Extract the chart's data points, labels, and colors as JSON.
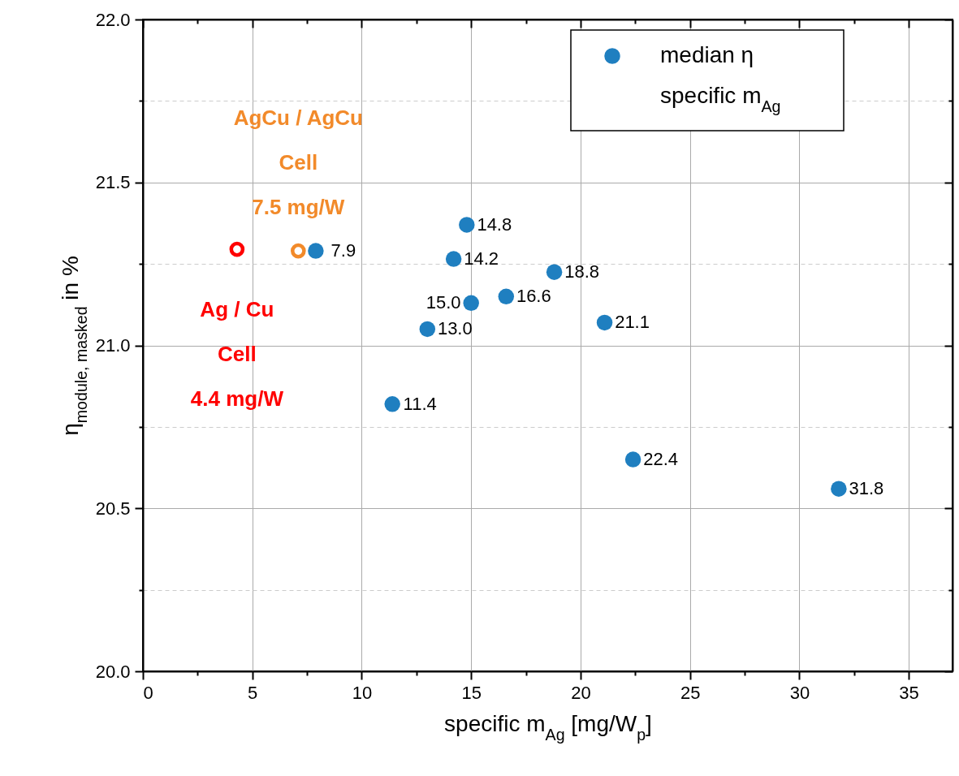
{
  "chart_data": {
    "type": "scatter",
    "xlabel": "specific m$_{Ag}$ [mg/W$_{p}$]",
    "ylabel": "η$_{module, masked}$ in %",
    "xlim": [
      0,
      37
    ],
    "ylim": [
      20,
      22
    ],
    "xticks": [
      0,
      {
        "value": 2.5,
        "label": null
      },
      5,
      {
        "value": 7.5,
        "label": null
      },
      10,
      {
        "value": 12.5,
        "label": null
      },
      15,
      {
        "value": 17.5,
        "label": null
      },
      20,
      {
        "value": 22.5,
        "label": null
      },
      25,
      {
        "value": 27.5,
        "label": null
      },
      30,
      {
        "value": 32.5,
        "label": null
      },
      35
    ],
    "yticks": [
      {
        "value": 20,
        "label": "20.0"
      },
      {
        "value": 20.25,
        "label": null
      },
      20.5,
      {
        "value": 20.75,
        "label": null
      },
      {
        "value": 21,
        "label": "21.0"
      },
      {
        "value": 21.25,
        "label": null
      },
      21.5,
      {
        "value": 21.75,
        "label": null
      },
      {
        "value": 22,
        "label": "22.0"
      }
    ],
    "grid": true,
    "legend": "top right",
    "marker": "circle",
    "series": [
      {
        "name": "median η",
        "color": "#1f7fc0",
        "x": [
          7.9,
          14.8,
          14.2,
          18.8,
          16.6,
          15.0,
          13.0,
          21.1,
          11.4,
          22.4,
          31.8
        ],
        "values": [
          21.29,
          21.37,
          21.265,
          21.225,
          21.15,
          21.13,
          21.05,
          21.07,
          20.82,
          20.65,
          20.56
        ]
      },
      {
        "color": "#f28a2a",
        "x": [
          7.1
        ],
        "values": [
          21.29
        ]
      },
      {
        "color": "#ff0000",
        "x": [
          4.3
        ],
        "values": [
          21.295
        ]
      }
    ],
    "annotations": [
      {
        "text": "AgCu / AgCu\nCell\n7.5 mg/W",
        "x": 7.1,
        "y": 21.29
      },
      {
        "text": "Ag / Cu\nCell\n4.4 mg/W",
        "x": 4.3,
        "y": 21.295
      },
      {
        "text": "7.9",
        "x": 7.9,
        "y": 21.29
      },
      {
        "text": "14.8",
        "x": 14.8,
        "y": 21.37
      },
      {
        "text": "14.2",
        "x": 14.2,
        "y": 21.265
      },
      {
        "text": "18.8",
        "x": 18.8,
        "y": 21.225
      },
      {
        "text": "16.6",
        "x": 16.6,
        "y": 21.15
      },
      {
        "text": "15.0",
        "x": 15.0,
        "y": 21.13
      },
      {
        "text": "13.0",
        "x": 13.0,
        "y": 21.05
      },
      {
        "text": "21.1",
        "x": 21.1,
        "y": 21.07
      },
      {
        "text": "11.4",
        "x": 11.4,
        "y": 20.82
      },
      {
        "text": "22.4",
        "x": 22.4,
        "y": 20.65
      },
      {
        "text": "31.8",
        "x": 31.8,
        "y": 20.56
      },
      "specific m$_{Ag}$"
    ]
  }
}
